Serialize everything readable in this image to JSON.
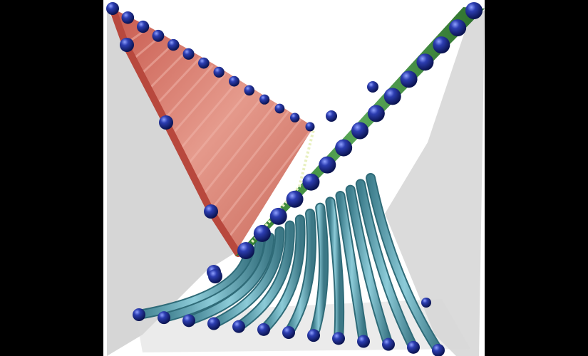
{
  "scene": {
    "colors": {
      "background": "#000000",
      "canvas": "#ffffff",
      "frame_panel": "#c8c8c8",
      "red_sheet": "#d9776a",
      "green_strip": "#3f8a3c",
      "teal_tubes": "#5fa3b3",
      "joints": "#1a2a8c"
    }
  }
}
